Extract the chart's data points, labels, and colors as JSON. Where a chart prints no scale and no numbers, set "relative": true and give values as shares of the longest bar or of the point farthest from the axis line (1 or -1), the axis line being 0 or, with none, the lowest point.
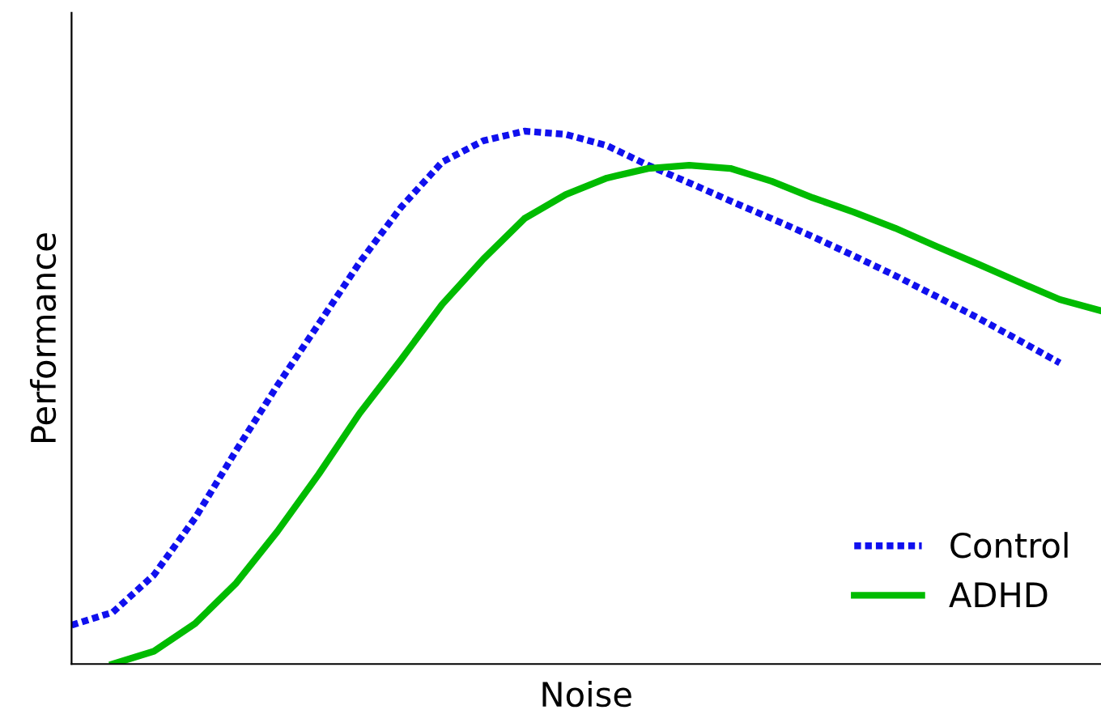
{
  "chart_data": {
    "type": "line",
    "relative": true,
    "xlabel": "Noise",
    "ylabel": "Performance",
    "categories": [
      null,
      null,
      null,
      null,
      null,
      null,
      null,
      null,
      null,
      null,
      null,
      null,
      null,
      null,
      null,
      null,
      null,
      null,
      null,
      null,
      null,
      null,
      null,
      null,
      null,
      null
    ],
    "series": [
      {
        "name": "Control",
        "color": "#1010ee",
        "line_style": "dotted",
        "values": [
          0.073,
          0.097,
          0.167,
          0.274,
          0.401,
          0.523,
          0.638,
          0.754,
          0.857,
          0.942,
          0.982,
          1.0,
          0.994,
          0.973,
          0.936,
          0.903,
          0.869,
          0.836,
          0.802,
          0.766,
          0.729,
          0.69,
          0.65,
          0.608,
          0.565,
          null
        ]
      },
      {
        "name": "ADHD",
        "color": "#00bb00",
        "line_style": "solid",
        "values": [
          null,
          0,
          0.024,
          0.076,
          0.152,
          0.249,
          0.356,
          0.471,
          0.571,
          0.675,
          0.76,
          0.836,
          0.881,
          0.912,
          0.93,
          0.936,
          0.93,
          0.906,
          0.875,
          0.848,
          0.818,
          0.784,
          0.751,
          0.717,
          0.684,
          0.663
        ]
      }
    ],
    "legend": "bottom right",
    "grid": false,
    "marker": "none"
  }
}
